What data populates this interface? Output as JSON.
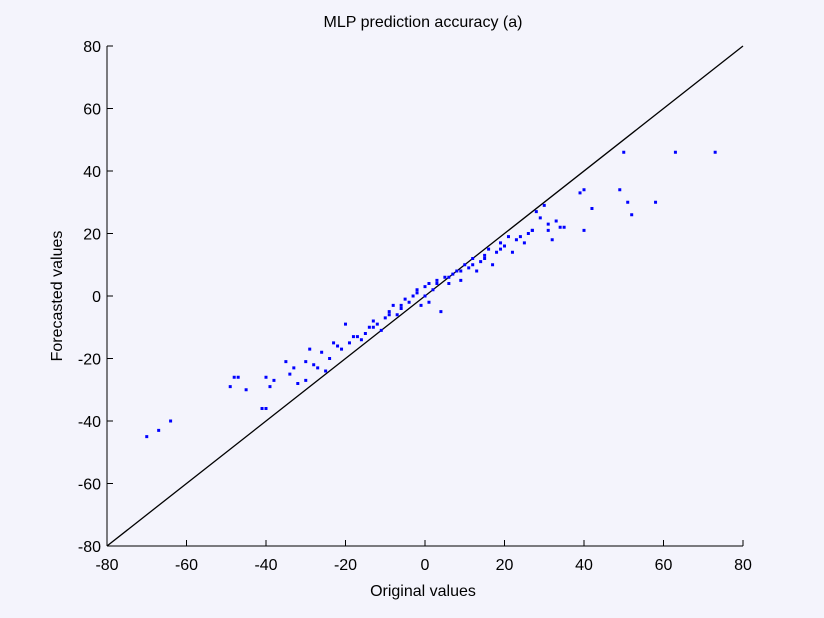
{
  "chart_data": {
    "type": "scatter",
    "title": "MLP prediction accuracy (a)",
    "x_label": "Original values",
    "y_label": "Forecasted values",
    "xlim": [
      -80,
      80
    ],
    "ylim": [
      -80,
      80
    ],
    "xticks": [
      -80,
      -60,
      -40,
      -20,
      0,
      20,
      40,
      60,
      80
    ],
    "yticks": [
      -80,
      -60,
      -40,
      -20,
      0,
      20,
      40,
      60,
      80
    ],
    "color": "#0000ff",
    "reference_line": {
      "x": [
        -80,
        80
      ],
      "y": [
        -80,
        80
      ],
      "color": "#000000"
    },
    "x": [
      -70,
      -67,
      -64,
      -49,
      -48,
      -47,
      -45,
      -41,
      -40,
      -40,
      -39,
      -38,
      -35,
      -34,
      -33,
      -32,
      -30,
      -30,
      -29,
      -27,
      -26,
      -25,
      -24,
      -23,
      -21,
      -20,
      -19,
      -18,
      -16,
      -15,
      -14,
      -13,
      -12,
      -11,
      -10,
      -9,
      -8,
      -7,
      -6,
      -5,
      -4,
      -3,
      -2,
      -1,
      0,
      0,
      1,
      1,
      2,
      3,
      4,
      5,
      6,
      7,
      8,
      9,
      10,
      11,
      12,
      13,
      14,
      15,
      16,
      17,
      18,
      19,
      20,
      21,
      22,
      24,
      25,
      26,
      27,
      28,
      29,
      30,
      31,
      32,
      33,
      34,
      35,
      39,
      40,
      40,
      42,
      49,
      50,
      51,
      52,
      58,
      63,
      73,
      -28,
      -22,
      -17,
      -13,
      -9,
      -6,
      -2,
      3,
      6,
      9,
      12,
      15,
      19,
      23,
      27,
      31
    ],
    "y": [
      -45,
      -43,
      -40,
      -29,
      -26,
      -26,
      -30,
      -36,
      -26,
      -36,
      -29,
      -27,
      -21,
      -25,
      -23,
      -28,
      -27,
      -21,
      -17,
      -23,
      -18,
      -24,
      -20,
      -15,
      -17,
      -9,
      -15,
      -13,
      -14,
      -12,
      -10,
      -8,
      -9,
      -11,
      -7,
      -5,
      -3,
      -6,
      -4,
      -1,
      -2,
      0,
      2,
      -3,
      0,
      3,
      -2,
      4,
      2,
      5,
      -5,
      6,
      4,
      7,
      8,
      5,
      10,
      9,
      12,
      8,
      11,
      13,
      15,
      10,
      14,
      17,
      16,
      19,
      14,
      19,
      17,
      20,
      21,
      27,
      25,
      29,
      21,
      18,
      24,
      22,
      22,
      33,
      34,
      21,
      28,
      34,
      46,
      30,
      26,
      30,
      46,
      46,
      -22,
      -16,
      -13,
      -10,
      -6,
      -3,
      1,
      4,
      6,
      8,
      10,
      12,
      15,
      18,
      21,
      23
    ]
  }
}
